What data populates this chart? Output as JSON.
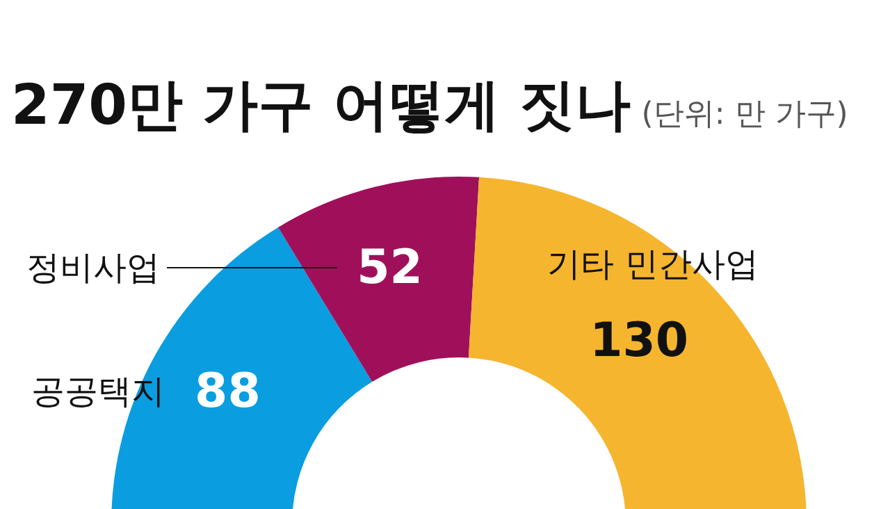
{
  "chart_data": {
    "type": "donut",
    "title": "270만 가구 어떻게 짓나",
    "subtitle": "(단위: 만 가구)",
    "categories": [
      "공공택지",
      "정비사업",
      "기타 민간사업"
    ],
    "values": [
      88,
      52,
      130
    ],
    "colors": [
      "#0a9de0",
      "#a0105a",
      "#f5b52e"
    ],
    "data_labels": true,
    "legend": false
  }
}
